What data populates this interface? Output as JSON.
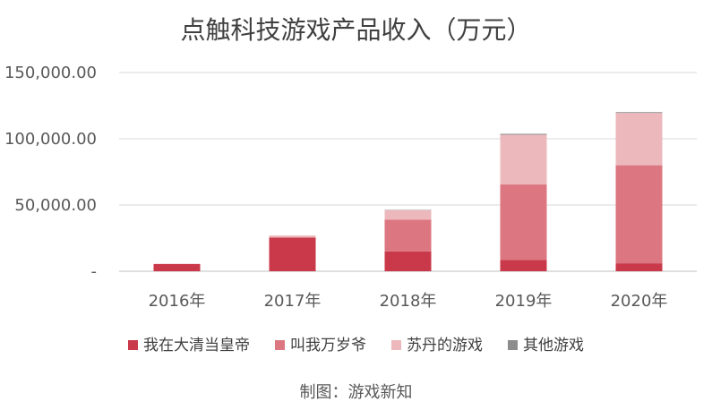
{
  "chart_data": {
    "type": "bar",
    "stacked": true,
    "title": "点触科技游戏产品收入（万元）",
    "categories": [
      "2016年",
      "2017年",
      "2018年",
      "2019年",
      "2020年"
    ],
    "series": [
      {
        "name": "我在大清当皇帝",
        "color": "#c9394a",
        "values": [
          5500,
          25500,
          15000,
          8500,
          6000
        ]
      },
      {
        "name": "叫我万岁爷",
        "color": "#dc7680",
        "values": [
          0,
          0,
          24000,
          57000,
          74000
        ]
      },
      {
        "name": "苏丹的游戏",
        "color": "#ecb8bc",
        "values": [
          0,
          1500,
          7000,
          37500,
          39500
        ]
      },
      {
        "name": "其他游戏",
        "color": "#8c8c8c",
        "values": [
          0,
          0,
          300,
          700,
          600
        ]
      }
    ],
    "ylim": [
      0,
      150000
    ],
    "yticks": [
      0,
      50000,
      100000,
      150000
    ],
    "ytick_labels": [
      "-",
      "50,000.00",
      "100,000.00",
      "150,000.00"
    ],
    "grid": true,
    "legend_position": "bottom"
  },
  "caption": "制图：游戏新知"
}
